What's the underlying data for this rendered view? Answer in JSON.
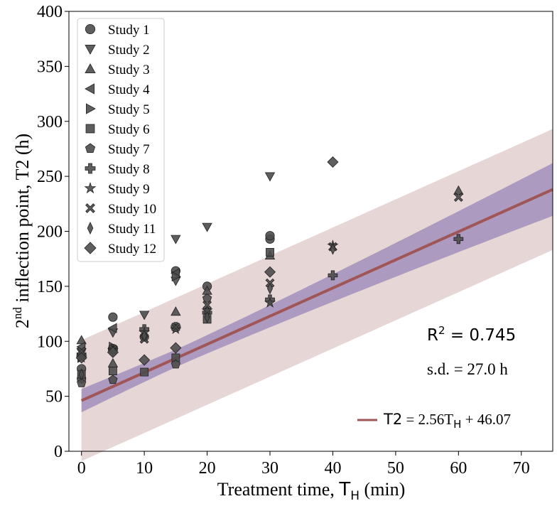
{
  "chart_data": {
    "type": "scatter",
    "xlabel_prefix": "Treatment time, ",
    "xlabel_var": "T",
    "xlabel_sub": "H",
    "xlabel_suffix": " (min)",
    "ylabel_sup": "nd",
    "ylabel_num": "2",
    "ylabel_rest": " inflection point, T2 (h)",
    "xlim": [
      -2,
      75
    ],
    "ylim": [
      0,
      400
    ],
    "xticks": [
      0,
      10,
      20,
      30,
      40,
      50,
      60,
      70
    ],
    "yticks": [
      0,
      50,
      100,
      150,
      200,
      250,
      300,
      350,
      400
    ],
    "grid": false,
    "legend_position": "top-left",
    "point_color": "#4d4d4d",
    "fit": {
      "slope": 2.56,
      "intercept": 46.07,
      "color": "#a05656",
      "confidence_band_halfwidth": [
        8,
        24
      ],
      "confidence_band_color": "#9a86b8",
      "prediction_band_halfwidth": 55,
      "prediction_band_color": "#e7d6d6",
      "legend_label_var": "T2",
      "legend_label_eq1": " = 2.56T",
      "legend_label_sub": "H",
      "legend_label_eq2": " + 46.07"
    },
    "annotations": {
      "r2_base": "R",
      "r2_sup": "2",
      "r2_value": " = 0.745",
      "sd": "s.d. = 27.0 h"
    },
    "series": [
      {
        "name": "Study 1",
        "marker": "circle",
        "points": [
          [
            0,
            75
          ],
          [
            0,
            66
          ],
          [
            5,
            122
          ],
          [
            10,
            104
          ],
          [
            15,
            164
          ],
          [
            20,
            150
          ],
          [
            30,
            193
          ],
          [
            30,
            196
          ]
        ]
      },
      {
        "name": "Study 2",
        "marker": "triangle-down",
        "points": [
          [
            0,
            90
          ],
          [
            5,
            108
          ],
          [
            10,
            124
          ],
          [
            15,
            155
          ],
          [
            15,
            193
          ],
          [
            20,
            204
          ],
          [
            30,
            250
          ]
        ]
      },
      {
        "name": "Study 3",
        "marker": "triangle-up",
        "points": [
          [
            0,
            101
          ],
          [
            5,
            80
          ],
          [
            15,
            127
          ],
          [
            20,
            146
          ],
          [
            30,
            178
          ],
          [
            60,
            237
          ]
        ]
      },
      {
        "name": "Study 4",
        "marker": "triangle-left",
        "points": [
          [
            0,
            95
          ],
          [
            5,
            112
          ],
          [
            15,
            162
          ]
        ]
      },
      {
        "name": "Study 5",
        "marker": "triangle-right",
        "points": [
          [
            0,
            85
          ],
          [
            5,
            95
          ],
          [
            15,
            159
          ]
        ]
      },
      {
        "name": "Study 6",
        "marker": "square",
        "points": [
          [
            0,
            70
          ],
          [
            5,
            73
          ],
          [
            10,
            72
          ],
          [
            15,
            85
          ],
          [
            20,
            120
          ],
          [
            30,
            181
          ]
        ]
      },
      {
        "name": "Study 7",
        "marker": "pentagon",
        "points": [
          [
            0,
            62
          ],
          [
            5,
            65
          ],
          [
            15,
            79
          ],
          [
            20,
            139
          ]
        ]
      },
      {
        "name": "Study 8",
        "marker": "plus",
        "points": [
          [
            0,
            88
          ],
          [
            5,
            93
          ],
          [
            10,
            111
          ],
          [
            15,
            113
          ],
          [
            20,
            126
          ],
          [
            30,
            138
          ],
          [
            40,
            160
          ],
          [
            60,
            193
          ]
        ]
      },
      {
        "name": "Study 9",
        "marker": "star",
        "points": [
          [
            0,
            85
          ],
          [
            5,
            92
          ],
          [
            10,
            108
          ],
          [
            15,
            111
          ],
          [
            20,
            128
          ],
          [
            30,
            135
          ],
          [
            40,
            187
          ]
        ]
      },
      {
        "name": "Study 10",
        "marker": "x",
        "points": [
          [
            0,
            91
          ],
          [
            5,
            93
          ],
          [
            10,
            102
          ],
          [
            15,
            113
          ],
          [
            20,
            133
          ],
          [
            30,
            153
          ],
          [
            40,
            186
          ],
          [
            60,
            231
          ]
        ]
      },
      {
        "name": "Study 11",
        "marker": "thin-diamond",
        "points": [
          [
            0,
            70
          ],
          [
            5,
            91
          ],
          [
            10,
            105
          ],
          [
            20,
            122
          ],
          [
            30,
            148
          ],
          [
            40,
            184
          ]
        ]
      },
      {
        "name": "Study 12",
        "marker": "diamond",
        "points": [
          [
            0,
            85
          ],
          [
            5,
            90
          ],
          [
            10,
            83
          ],
          [
            15,
            94
          ],
          [
            30,
            163
          ],
          [
            40,
            263
          ]
        ]
      }
    ]
  }
}
